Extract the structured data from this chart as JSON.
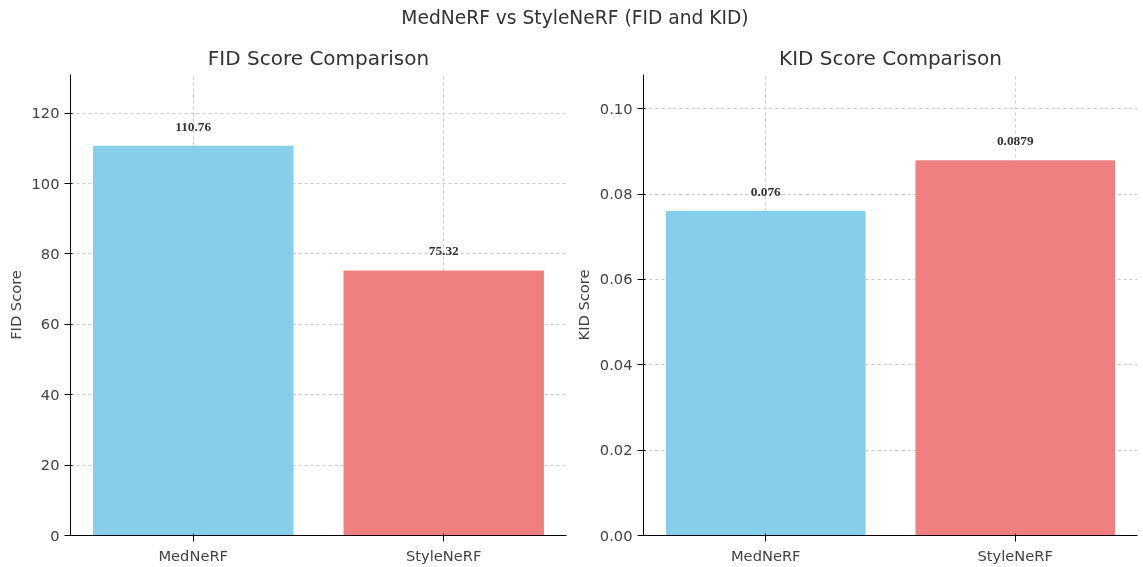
{
  "chart_data": [
    {
      "type": "bar",
      "title": "FID Score Comparison",
      "ylabel": "FID Score",
      "categories": [
        "MedNeRF",
        "StyleNeRF"
      ],
      "values": [
        110.76,
        75.32
      ],
      "colors": [
        "#87ceeb",
        "#f08080"
      ],
      "ylim": [
        0,
        131
      ],
      "yticks": [
        0,
        20,
        40,
        60,
        80,
        100,
        120
      ],
      "grid": true,
      "data_labels": true,
      "annotations": [
        "MedNeRF vs StyleNeRF (FID and KID)"
      ]
    },
    {
      "type": "bar",
      "title": "KID Score Comparison",
      "ylabel": "KID Score",
      "categories": [
        "MedNeRF",
        "StyleNeRF"
      ],
      "values": [
        0.076,
        0.0879
      ],
      "colors": [
        "#87ceeb",
        "#f08080"
      ],
      "ylim": [
        0,
        0.108
      ],
      "yticks": [
        {
          "value": 0,
          "label": "0.00"
        },
        {
          "value": 0.02,
          "label": "0.02"
        },
        {
          "value": 0.04,
          "label": "0.04"
        },
        {
          "value": 0.06,
          "label": "0.06"
        },
        {
          "value": 0.08,
          "label": "0.08"
        },
        {
          "value": 0.1,
          "label": "0.10"
        }
      ],
      "grid": true,
      "data_labels": true
    }
  ]
}
